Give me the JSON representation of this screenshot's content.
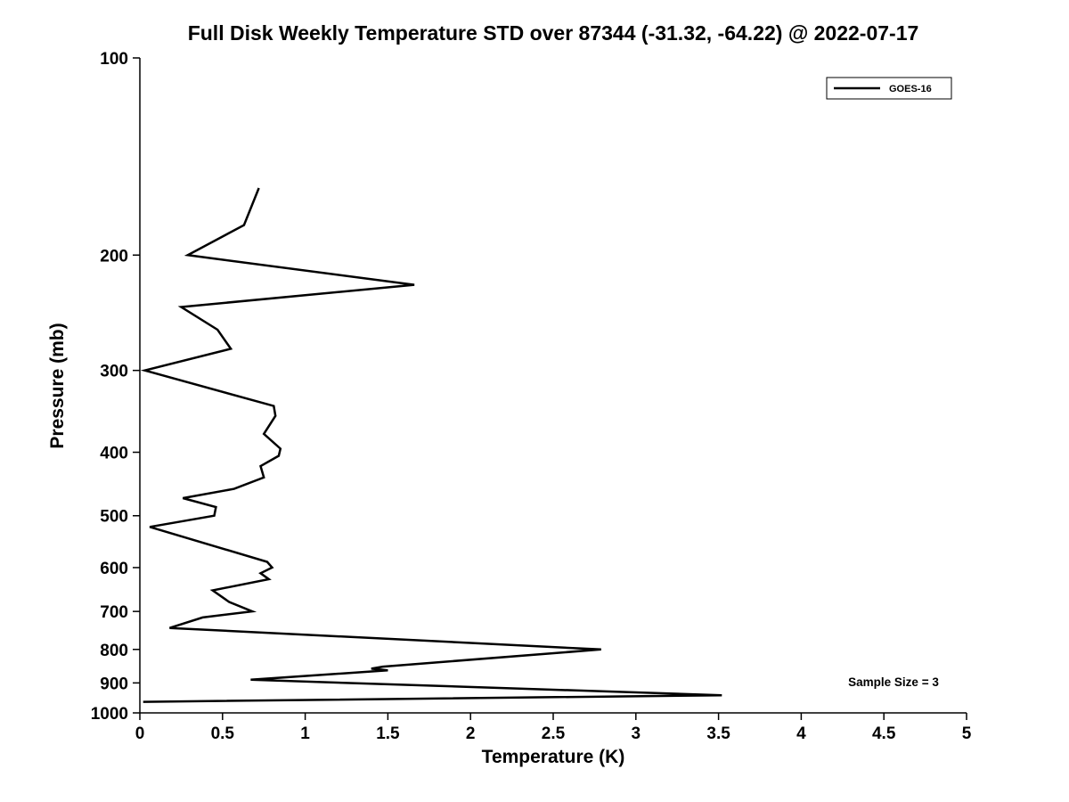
{
  "title": "Full Disk Weekly Temperature STD over 87344 (-31.32, -64.22) @ 2022-07-17",
  "chart_data": {
    "type": "line",
    "title": "Full Disk Weekly Temperature STD over 87344 (-31.32, -64.22) @ 2022-07-17",
    "xlabel": "Temperature (K)",
    "ylabel": "Pressure (mb)",
    "xlim": [
      0,
      5
    ],
    "ylim": [
      100,
      1000
    ],
    "y_scale": "log",
    "y_inverted": true,
    "grid": false,
    "x_ticks": {
      "values": [
        0,
        0.5,
        1,
        1.5,
        2,
        2.5,
        3,
        3.5,
        4,
        4.5,
        5
      ],
      "labels": [
        "0",
        "0.5",
        "1",
        "1.5",
        "2",
        "2.5",
        "3",
        "3.5",
        "4",
        "4.5",
        "5"
      ]
    },
    "y_ticks": {
      "values": [
        100,
        200,
        300,
        400,
        500,
        600,
        700,
        800,
        900,
        1000
      ],
      "labels": [
        "100",
        "200",
        "300",
        "400",
        "500",
        "600",
        "700",
        "800",
        "900",
        "1000"
      ]
    },
    "legend": {
      "position": "top-right",
      "entries": [
        {
          "label": "GOES-16",
          "color": "#000000"
        }
      ]
    },
    "annotation": "Sample Size = 3",
    "series": [
      {
        "name": "GOES-16",
        "color": "#000000",
        "points_format": "[temperature_K, pressure_mb]",
        "points": [
          [
            0.72,
            158
          ],
          [
            0.63,
            180
          ],
          [
            0.29,
            200
          ],
          [
            1.66,
            222
          ],
          [
            0.25,
            240
          ],
          [
            0.47,
            260
          ],
          [
            0.55,
            278
          ],
          [
            0.03,
            300
          ],
          [
            0.81,
            340
          ],
          [
            0.82,
            352
          ],
          [
            0.75,
            375
          ],
          [
            0.85,
            395
          ],
          [
            0.84,
            405
          ],
          [
            0.73,
            420
          ],
          [
            0.75,
            437
          ],
          [
            0.57,
            455
          ],
          [
            0.26,
            470
          ],
          [
            0.46,
            485
          ],
          [
            0.45,
            500
          ],
          [
            0.06,
            520
          ],
          [
            0.77,
            588
          ],
          [
            0.8,
            600
          ],
          [
            0.73,
            612
          ],
          [
            0.78,
            625
          ],
          [
            0.44,
            650
          ],
          [
            0.54,
            677
          ],
          [
            0.68,
            700
          ],
          [
            0.38,
            715
          ],
          [
            0.18,
            742
          ],
          [
            2.79,
            800
          ],
          [
            1.47,
            850
          ],
          [
            1.4,
            856
          ],
          [
            1.5,
            861
          ],
          [
            0.67,
            890
          ],
          [
            3.52,
            940
          ],
          [
            0.02,
            962
          ]
        ]
      }
    ]
  }
}
